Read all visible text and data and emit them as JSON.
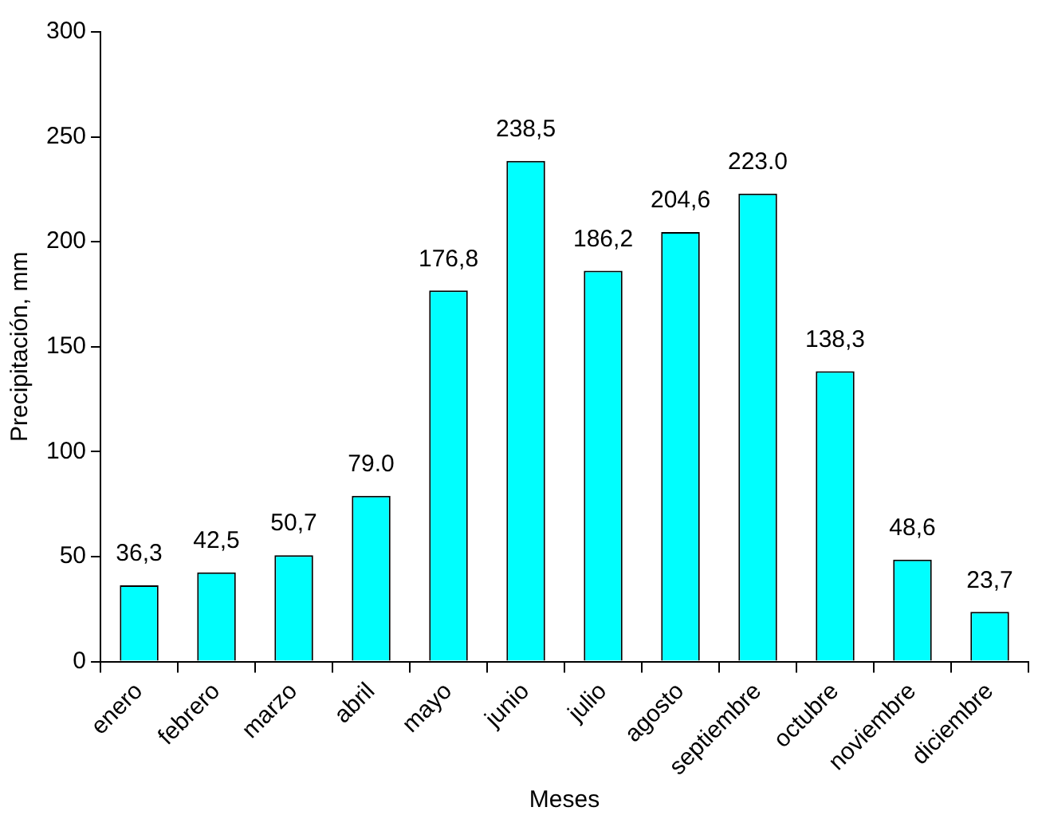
{
  "chart_data": {
    "type": "bar",
    "xlabel": "Meses",
    "ylabel": "Precipitación, mm",
    "categories": [
      "enero",
      "febrero",
      "marzo",
      "abril",
      "mayo",
      "junio",
      "julio",
      "agosto",
      "septiembre",
      "octubre",
      "noviembre",
      "diciembre"
    ],
    "values": [
      36.3,
      42.5,
      50.7,
      79.0,
      176.8,
      238.5,
      186.2,
      204.6,
      223.0,
      138.3,
      48.6,
      23.7
    ],
    "value_labels": [
      "36,3",
      "42,5",
      "50,7",
      "79.0",
      "176,8",
      "238,5",
      "186,2",
      "204,6",
      "223.0",
      "138,3",
      "48,6",
      "23,7"
    ],
    "color": "#00ffff",
    "ylim": [
      0,
      300
    ],
    "yticks": [
      0,
      50,
      100,
      150,
      200,
      250,
      300
    ],
    "grid": false,
    "legend": false
  }
}
